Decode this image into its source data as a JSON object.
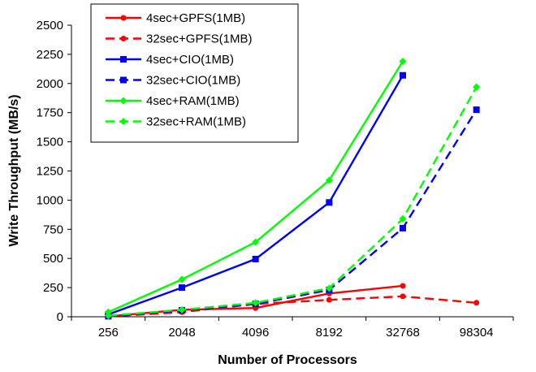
{
  "chart_data": {
    "type": "line",
    "title": "",
    "xlabel": "Number of Processors",
    "ylabel": "Write Throughput (MB/s)",
    "categories": [
      "256",
      "2048",
      "4096",
      "8192",
      "32768",
      "98304"
    ],
    "ylim": [
      0,
      2500
    ],
    "yticks": [
      "0",
      "250",
      "500",
      "750",
      "1000",
      "1250",
      "1500",
      "1750",
      "2000",
      "2250",
      "2500"
    ],
    "grid": false,
    "legend_position": "top-left",
    "series": [
      {
        "name": "4sec+GPFS(1MB)",
        "color": "#ff0000",
        "dash": "solid",
        "marker": "circle",
        "values": [
          3,
          60,
          75,
          200,
          265,
          null
        ]
      },
      {
        "name": "32sec+GPFS(1MB)",
        "color": "#ff0000",
        "dash": "dashed",
        "marker": "circle",
        "values": [
          3,
          40,
          110,
          145,
          175,
          120
        ]
      },
      {
        "name": "4sec+CIO(1MB)",
        "color": "#0000ff",
        "dash": "solid",
        "marker": "square",
        "values": [
          20,
          250,
          495,
          980,
          2070,
          null
        ]
      },
      {
        "name": "32sec+CIO(1MB)",
        "color": "#0000ff",
        "dash": "dashed",
        "marker": "square",
        "values": [
          5,
          55,
          110,
          230,
          760,
          1775
        ]
      },
      {
        "name": "4sec+RAM(1MB)",
        "color": "#00ff00",
        "dash": "solid",
        "marker": "diamond",
        "values": [
          40,
          320,
          640,
          1170,
          2190,
          null
        ]
      },
      {
        "name": "32sec+RAM(1MB)",
        "color": "#00ff00",
        "dash": "dashed",
        "marker": "diamond",
        "values": [
          10,
          60,
          120,
          245,
          840,
          1970
        ]
      }
    ]
  }
}
